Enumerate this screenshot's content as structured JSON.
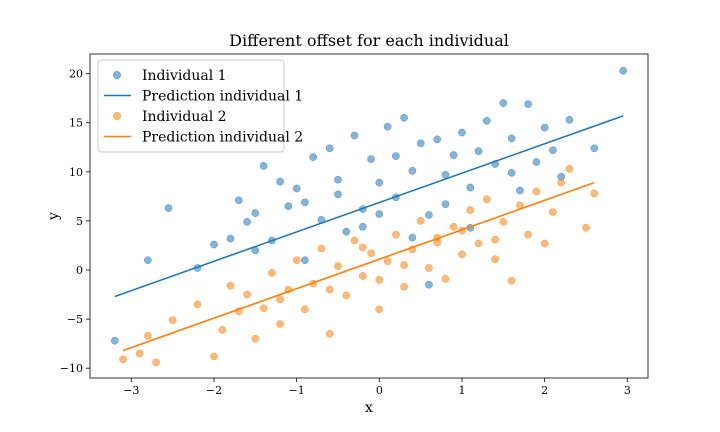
{
  "chart_data": {
    "type": "scatter",
    "title": "Different offset for each individual",
    "xlabel": "x",
    "ylabel": "y",
    "xlim": [
      -3.5,
      3.25
    ],
    "ylim": [
      -11,
      22
    ],
    "x_ticks": [
      -3,
      -2,
      -1,
      0,
      1,
      2,
      3
    ],
    "y_ticks": [
      -10,
      -5,
      0,
      5,
      10,
      15,
      20
    ],
    "grid": false,
    "legend_position": "top-left",
    "legend": [
      "Individual 1",
      "Prediction individual 1",
      "Individual 2",
      "Prediction individual 2"
    ],
    "series": [
      {
        "name": "Individual 1",
        "kind": "scatter",
        "color": "#1f77b4",
        "points": [
          [
            -3.2,
            -7.2
          ],
          [
            -2.8,
            1.0
          ],
          [
            -2.55,
            6.3
          ],
          [
            -2.2,
            0.2
          ],
          [
            -2.0,
            2.6
          ],
          [
            -1.8,
            3.2
          ],
          [
            -1.7,
            7.1
          ],
          [
            -1.6,
            4.9
          ],
          [
            -1.5,
            2.0
          ],
          [
            -1.4,
            10.6
          ],
          [
            -1.3,
            3.0
          ],
          [
            -1.2,
            9.0
          ],
          [
            -1.1,
            6.5
          ],
          [
            -1.0,
            8.3
          ],
          [
            -0.9,
            1.0
          ],
          [
            -0.8,
            11.5
          ],
          [
            -0.7,
            5.1
          ],
          [
            -0.6,
            12.4
          ],
          [
            -0.5,
            7.7
          ],
          [
            -0.4,
            3.9
          ],
          [
            -0.3,
            13.7
          ],
          [
            -0.2,
            6.2
          ],
          [
            -0.1,
            11.3
          ],
          [
            0.0,
            8.9
          ],
          [
            0.1,
            14.6
          ],
          [
            0.2,
            7.4
          ],
          [
            0.3,
            15.5
          ],
          [
            0.4,
            10.1
          ],
          [
            0.5,
            12.9
          ],
          [
            0.6,
            5.6
          ],
          [
            0.7,
            13.3
          ],
          [
            0.8,
            9.7
          ],
          [
            0.9,
            11.7
          ],
          [
            1.0,
            14.0
          ],
          [
            1.1,
            8.4
          ],
          [
            1.2,
            12.1
          ],
          [
            1.3,
            15.2
          ],
          [
            1.4,
            10.8
          ],
          [
            1.5,
            17.0
          ],
          [
            1.6,
            13.4
          ],
          [
            1.7,
            8.1
          ],
          [
            1.8,
            16.9
          ],
          [
            1.9,
            11.0
          ],
          [
            2.0,
            14.5
          ],
          [
            2.1,
            12.2
          ],
          [
            2.2,
            9.5
          ],
          [
            2.3,
            15.3
          ],
          [
            2.6,
            12.4
          ],
          [
            2.95,
            20.3
          ],
          [
            0.6,
            -1.5
          ],
          [
            -0.5,
            9.2
          ],
          [
            -0.2,
            4.4
          ],
          [
            0.2,
            11.6
          ],
          [
            0.4,
            3.3
          ],
          [
            0.8,
            6.7
          ],
          [
            1.1,
            4.3
          ],
          [
            -1.5,
            5.8
          ],
          [
            -0.9,
            6.9
          ],
          [
            0.0,
            5.7
          ],
          [
            1.6,
            9.9
          ]
        ]
      },
      {
        "name": "Prediction individual 1",
        "kind": "line",
        "color": "#1f77b4",
        "points": [
          [
            -3.2,
            -2.7
          ],
          [
            2.95,
            15.7
          ]
        ]
      },
      {
        "name": "Individual 2",
        "kind": "scatter",
        "color": "#ff7f0e",
        "points": [
          [
            -3.1,
            -9.1
          ],
          [
            -2.9,
            -8.5
          ],
          [
            -2.8,
            -6.7
          ],
          [
            -2.7,
            -9.4
          ],
          [
            -2.5,
            -5.1
          ],
          [
            -2.2,
            -3.5
          ],
          [
            -2.0,
            -8.8
          ],
          [
            -1.9,
            -6.1
          ],
          [
            -1.8,
            -1.6
          ],
          [
            -1.7,
            -4.2
          ],
          [
            -1.6,
            -2.5
          ],
          [
            -1.5,
            -7.0
          ],
          [
            -1.4,
            -3.9
          ],
          [
            -1.3,
            -0.3
          ],
          [
            -1.2,
            -5.5
          ],
          [
            -1.1,
            -2.0
          ],
          [
            -1.0,
            1.0
          ],
          [
            -0.9,
            -4.0
          ],
          [
            -0.8,
            -1.4
          ],
          [
            -0.7,
            2.2
          ],
          [
            -0.6,
            -6.5
          ],
          [
            -0.5,
            0.4
          ],
          [
            -0.4,
            -2.6
          ],
          [
            -0.3,
            3.0
          ],
          [
            -0.2,
            -0.6
          ],
          [
            -0.1,
            1.7
          ],
          [
            0.0,
            -4.0
          ],
          [
            0.1,
            0.9
          ],
          [
            0.2,
            3.6
          ],
          [
            0.3,
            -1.7
          ],
          [
            0.4,
            2.1
          ],
          [
            0.5,
            5.0
          ],
          [
            0.6,
            0.2
          ],
          [
            0.7,
            3.3
          ],
          [
            0.8,
            -0.9
          ],
          [
            0.9,
            4.4
          ],
          [
            1.0,
            1.6
          ],
          [
            1.1,
            6.1
          ],
          [
            1.2,
            2.7
          ],
          [
            1.3,
            7.2
          ],
          [
            1.4,
            1.1
          ],
          [
            1.5,
            4.9
          ],
          [
            1.6,
            -1.1
          ],
          [
            1.7,
            6.6
          ],
          [
            1.8,
            3.6
          ],
          [
            1.9,
            8.0
          ],
          [
            2.0,
            2.7
          ],
          [
            2.1,
            5.9
          ],
          [
            2.2,
            8.9
          ],
          [
            2.3,
            10.3
          ],
          [
            2.5,
            4.3
          ],
          [
            2.6,
            7.8
          ],
          [
            -0.6,
            -2.0
          ],
          [
            -0.2,
            2.3
          ],
          [
            0.3,
            0.5
          ],
          [
            0.7,
            2.8
          ],
          [
            1.0,
            4.0
          ],
          [
            1.4,
            3.1
          ],
          [
            -1.2,
            -3.0
          ],
          [
            0.0,
            -1.0
          ]
        ]
      },
      {
        "name": "Prediction individual 2",
        "kind": "line",
        "color": "#ff7f0e",
        "points": [
          [
            -3.1,
            -8.2
          ],
          [
            2.6,
            8.9
          ]
        ]
      }
    ]
  }
}
